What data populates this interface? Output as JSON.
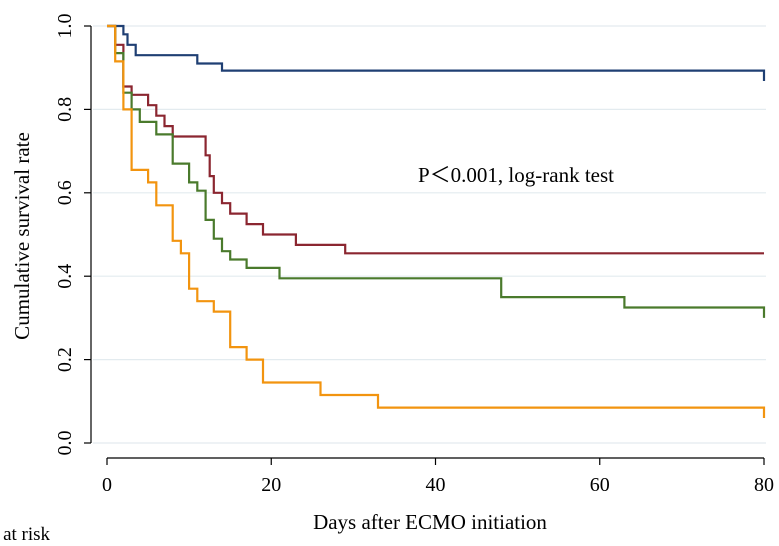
{
  "chart_data": {
    "type": "line",
    "step": true,
    "xlabel": "Days after ECMO initiation",
    "ylabel": "Cumulative survival rate",
    "xlim": [
      0,
      80
    ],
    "ylim": [
      0,
      1
    ],
    "xticks": [
      "0",
      "20",
      "40",
      "60",
      "80"
    ],
    "yticks": [
      "0.0",
      "0.2",
      "0.4",
      "0.6",
      "0.8",
      "1.0"
    ],
    "grid": "horizontal",
    "annotation": "P＜0.001, log-rank test",
    "series": [
      {
        "color": "#1f3f73",
        "x": [
          0,
          2,
          2.5,
          3.5,
          11,
          14,
          80
        ],
        "y": [
          1.0,
          0.98,
          0.955,
          0.93,
          0.91,
          0.893,
          0.868
        ]
      },
      {
        "color": "#8b2630",
        "x": [
          0,
          1,
          2,
          3,
          5,
          6,
          7,
          8,
          12,
          12.5,
          13,
          14,
          15,
          17,
          19,
          23,
          29,
          80
        ],
        "y": [
          1.0,
          0.955,
          0.855,
          0.835,
          0.81,
          0.785,
          0.76,
          0.735,
          0.69,
          0.64,
          0.6,
          0.575,
          0.55,
          0.525,
          0.5,
          0.475,
          0.455,
          0.455
        ]
      },
      {
        "color": "#4a7a2c",
        "x": [
          0,
          1,
          2,
          3,
          4,
          6,
          8,
          10,
          11,
          12,
          13,
          14,
          15,
          17,
          21,
          48,
          63,
          80
        ],
        "y": [
          1.0,
          0.935,
          0.84,
          0.8,
          0.77,
          0.74,
          0.67,
          0.625,
          0.605,
          0.535,
          0.49,
          0.46,
          0.44,
          0.42,
          0.395,
          0.35,
          0.325,
          0.3
        ]
      },
      {
        "color": "#f2940f",
        "x": [
          0,
          1,
          2,
          3,
          5,
          6,
          8,
          9,
          10,
          11,
          13,
          15,
          17,
          19,
          26,
          33,
          80
        ],
        "y": [
          1.0,
          0.915,
          0.8,
          0.655,
          0.625,
          0.57,
          0.485,
          0.455,
          0.37,
          0.34,
          0.315,
          0.23,
          0.2,
          0.145,
          0.115,
          0.085,
          0.06
        ]
      }
    ]
  },
  "cut_text": "r at risk"
}
